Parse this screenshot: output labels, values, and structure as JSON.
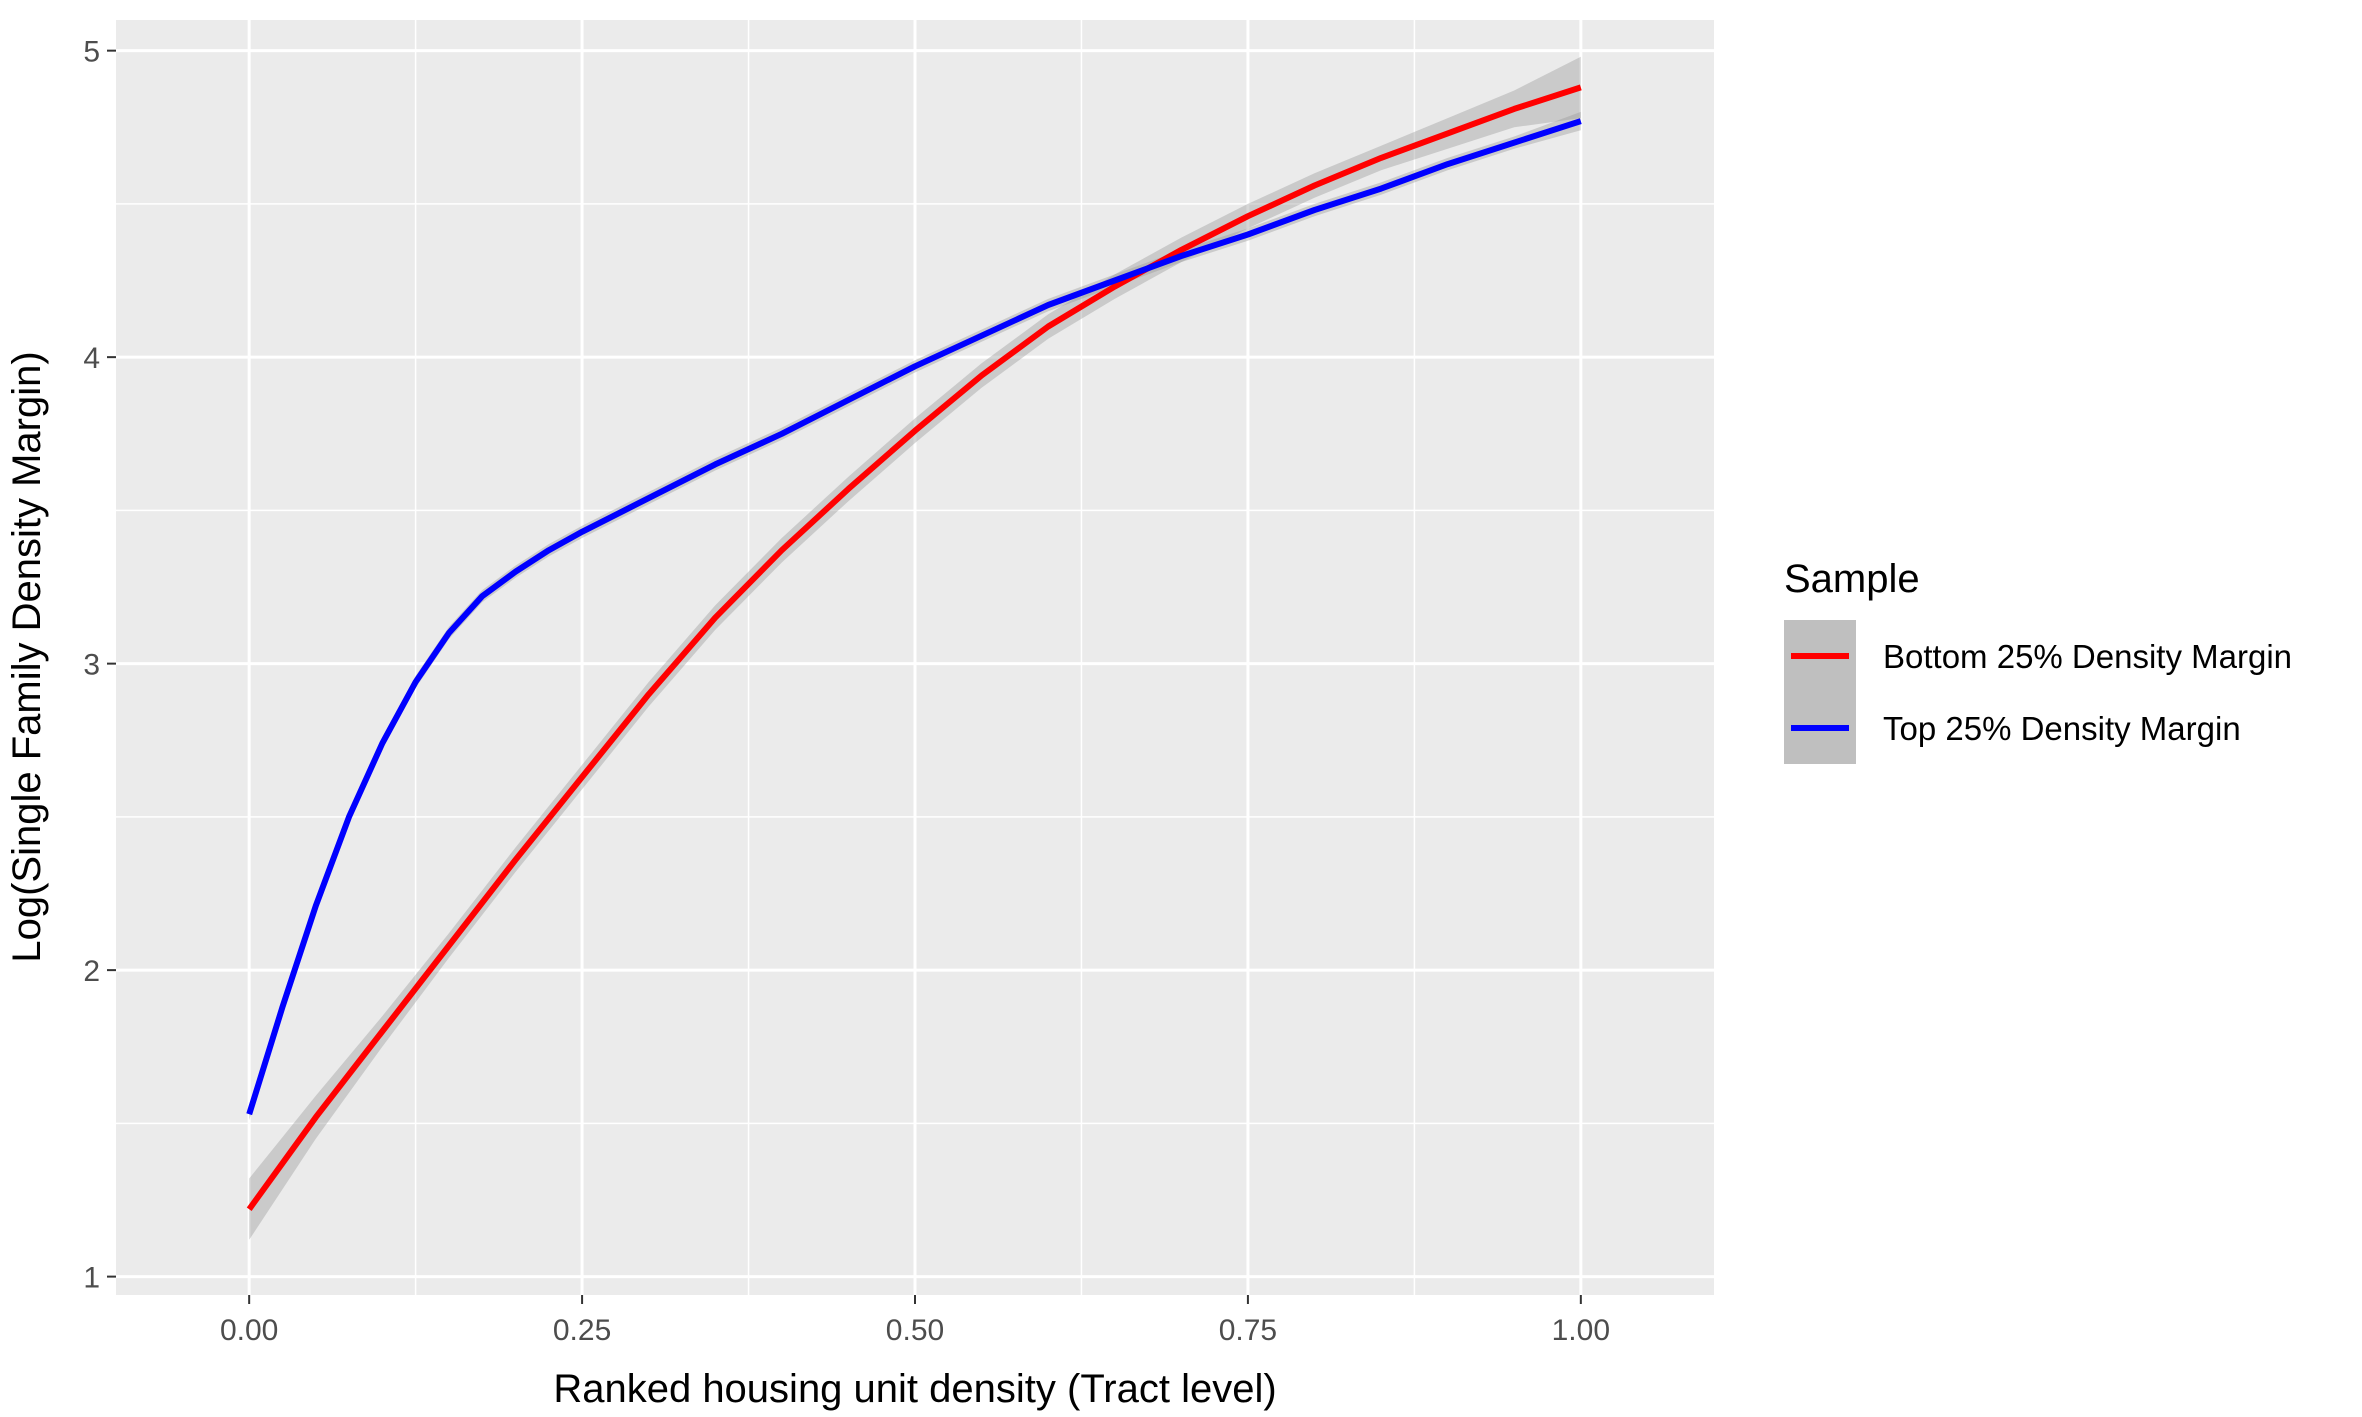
{
  "chart_data": {
    "type": "line",
    "title": "",
    "xlabel": "Ranked housing unit density (Tract level)",
    "ylabel": "Log(Single Family Density Margin)",
    "xlim": [
      -0.1,
      1.1
    ],
    "ylim": [
      0.94,
      5.1
    ],
    "x_ticks": [
      0.0,
      0.25,
      0.5,
      0.75,
      1.0
    ],
    "x_tick_labels": [
      "0.00",
      "0.25",
      "0.50",
      "0.75",
      "1.00"
    ],
    "y_ticks": [
      1,
      2,
      3,
      4,
      5
    ],
    "y_tick_labels": [
      "1",
      "2",
      "3",
      "4",
      "5"
    ],
    "grid": true,
    "legend": {
      "title": "Sample",
      "placement": "right"
    },
    "series": [
      {
        "name": "Bottom 25% Density Margin",
        "color": "#ff0000",
        "x": [
          0.0,
          0.05,
          0.1,
          0.15,
          0.2,
          0.25,
          0.3,
          0.35,
          0.4,
          0.45,
          0.5,
          0.55,
          0.6,
          0.65,
          0.7,
          0.75,
          0.8,
          0.85,
          0.9,
          0.95,
          1.0
        ],
        "y": [
          1.22,
          1.52,
          1.8,
          2.08,
          2.36,
          2.63,
          2.9,
          3.15,
          3.37,
          3.57,
          3.76,
          3.94,
          4.1,
          4.23,
          4.35,
          4.46,
          4.56,
          4.65,
          4.73,
          4.81,
          4.88
        ],
        "ci_halfwidth": [
          0.1,
          0.07,
          0.05,
          0.04,
          0.04,
          0.04,
          0.04,
          0.04,
          0.04,
          0.04,
          0.04,
          0.04,
          0.04,
          0.04,
          0.04,
          0.04,
          0.04,
          0.04,
          0.05,
          0.06,
          0.1
        ]
      },
      {
        "name": "Top 25% Density Margin",
        "color": "#0000ff",
        "x": [
          0.0,
          0.025,
          0.05,
          0.075,
          0.1,
          0.125,
          0.15,
          0.175,
          0.2,
          0.225,
          0.25,
          0.3,
          0.35,
          0.4,
          0.45,
          0.5,
          0.55,
          0.6,
          0.65,
          0.7,
          0.75,
          0.8,
          0.85,
          0.9,
          0.95,
          1.0
        ],
        "y": [
          1.53,
          1.88,
          2.21,
          2.5,
          2.74,
          2.94,
          3.1,
          3.22,
          3.3,
          3.37,
          3.43,
          3.54,
          3.65,
          3.75,
          3.86,
          3.97,
          4.07,
          4.17,
          4.25,
          4.33,
          4.4,
          4.48,
          4.55,
          4.63,
          4.7,
          4.77
        ],
        "ci_halfwidth": [
          0.02,
          0.02,
          0.02,
          0.02,
          0.02,
          0.02,
          0.02,
          0.02,
          0.02,
          0.02,
          0.02,
          0.02,
          0.02,
          0.02,
          0.02,
          0.02,
          0.02,
          0.02,
          0.02,
          0.02,
          0.02,
          0.02,
          0.02,
          0.02,
          0.02,
          0.03
        ]
      }
    ]
  }
}
